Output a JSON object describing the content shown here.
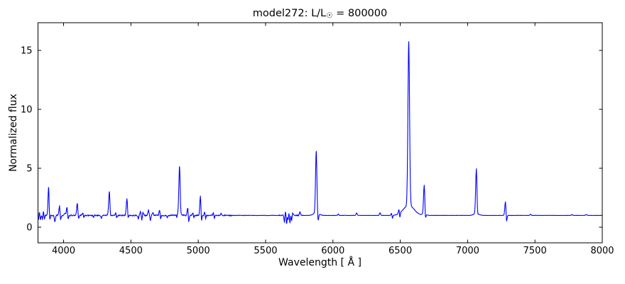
{
  "title": {
    "prefix": "model272: L/L",
    "sub": "☉",
    "suffix": " = 800000"
  },
  "chart_data": {
    "type": "line",
    "title": "model272: L/L☉ = 800000",
    "xlabel": "Wavelength [ Å ]",
    "ylabel": "Normalized flux",
    "xlim": [
      3810,
      8000
    ],
    "ylim": [
      -1.325,
      17.35
    ],
    "xticks": [
      4000,
      4500,
      5000,
      5500,
      6000,
      6500,
      7000,
      7500,
      8000
    ],
    "yticks": [
      0,
      5,
      10,
      15
    ],
    "grid": false,
    "legend": "none",
    "line_color": "#0000ff",
    "background": "#ffffff",
    "axis_color": "#000000",
    "continuum": 1.0,
    "noise": {
      "seed": 42,
      "regions": [
        {
          "from": 3810,
          "to": 5250,
          "amp": 0.055
        },
        {
          "from": 5250,
          "to": 5600,
          "amp": 0.018
        },
        {
          "from": 5600,
          "to": 5770,
          "amp": 0.05
        },
        {
          "from": 5770,
          "to": 8000,
          "amp": 0.012
        }
      ]
    },
    "emission_lines": [
      {
        "wl": 3820,
        "peak": 1.35,
        "sigma": 4
      },
      {
        "wl": 3850,
        "peak": 1.3,
        "sigma": 3.5
      },
      {
        "wl": 3889,
        "peak": 3.45,
        "sigma": 4.5
      },
      {
        "wl": 3970,
        "peak": 1.85,
        "sigma": 4.5
      },
      {
        "wl": 4009,
        "peak": 1.2,
        "sigma": 4
      },
      {
        "wl": 4026,
        "peak": 1.75,
        "sigma": 4.5
      },
      {
        "wl": 4102,
        "peak": 2.05,
        "sigma": 5
      },
      {
        "wl": 4144,
        "peak": 1.25,
        "sigma": 4
      },
      {
        "wl": 4340,
        "peak": 3.1,
        "sigma": 5
      },
      {
        "wl": 4388,
        "peak": 1.2,
        "sigma": 4
      },
      {
        "wl": 4471,
        "peak": 2.45,
        "sigma": 5
      },
      {
        "wl": 4570,
        "peak": 1.3,
        "sigma": 4
      },
      {
        "wl": 4590,
        "peak": 1.25,
        "sigma": 4
      },
      {
        "wl": 4630,
        "peak": 1.45,
        "sigma": 4
      },
      {
        "wl": 4662,
        "peak": 1.25,
        "sigma": 4
      },
      {
        "wl": 4713,
        "peak": 1.5,
        "sigma": 4
      },
      {
        "wl": 4861,
        "peak": 5.2,
        "sigma": 5,
        "wing_amp": 0.12,
        "wing_sigma": 18
      },
      {
        "wl": 4922,
        "peak": 1.7,
        "sigma": 4
      },
      {
        "wl": 4960,
        "peak": 1.25,
        "sigma": 4
      },
      {
        "wl": 5016,
        "peak": 2.7,
        "sigma": 4.5
      },
      {
        "wl": 5048,
        "peak": 1.3,
        "sigma": 4
      },
      {
        "wl": 5112,
        "peak": 1.2,
        "sigma": 4
      },
      {
        "wl": 5170,
        "peak": 1.15,
        "sigma": 4
      },
      {
        "wl": 5648,
        "peak": 1.3,
        "sigma": 4
      },
      {
        "wl": 5672,
        "peak": 1.35,
        "sigma": 4
      },
      {
        "wl": 5700,
        "peak": 1.25,
        "sigma": 4
      },
      {
        "wl": 5755,
        "peak": 1.3,
        "sigma": 4
      },
      {
        "wl": 5876,
        "peak": 6.45,
        "sigma": 5,
        "wing_amp": 0.22,
        "wing_sigma": 20
      },
      {
        "wl": 6040,
        "peak": 1.12,
        "sigma": 4
      },
      {
        "wl": 6176,
        "peak": 1.22,
        "sigma": 4
      },
      {
        "wl": 6350,
        "peak": 1.22,
        "sigma": 4
      },
      {
        "wl": 6435,
        "peak": 1.18,
        "sigma": 4
      },
      {
        "wl": 6490,
        "peak": 1.35,
        "sigma": 4
      },
      {
        "wl": 6563,
        "peak": 15.75,
        "sigma": 6,
        "wing_amp": 0.85,
        "wing_sigma": 40
      },
      {
        "wl": 6678,
        "peak": 3.6,
        "sigma": 5,
        "wing_amp": 0.1,
        "wing_sigma": 15
      },
      {
        "wl": 7065,
        "peak": 5.0,
        "sigma": 5,
        "wing_amp": 0.15,
        "wing_sigma": 20
      },
      {
        "wl": 7281,
        "peak": 2.2,
        "sigma": 4.5
      },
      {
        "wl": 7468,
        "peak": 1.1,
        "sigma": 4
      },
      {
        "wl": 7775,
        "peak": 1.08,
        "sigma": 4
      },
      {
        "wl": 7880,
        "peak": 1.08,
        "sigma": 4
      }
    ],
    "absorption_lines": [
      {
        "wl": 3814,
        "min": 0.6,
        "sigma": 3
      },
      {
        "wl": 3828,
        "min": 0.55,
        "sigma": 3
      },
      {
        "wl": 3843,
        "min": 0.65,
        "sigma": 3
      },
      {
        "wl": 3858,
        "min": 0.7,
        "sigma": 3
      },
      {
        "wl": 3896,
        "min": 0.15,
        "sigma": 3.5
      },
      {
        "wl": 3935,
        "min": 0.5,
        "sigma": 4
      },
      {
        "wl": 3977,
        "min": 0.45,
        "sigma": 3.5
      },
      {
        "wl": 4033,
        "min": 0.5,
        "sigma": 3.5
      },
      {
        "wl": 4110,
        "min": 0.5,
        "sigma": 3.5
      },
      {
        "wl": 4150,
        "min": 0.7,
        "sigma": 3
      },
      {
        "wl": 4222,
        "min": 0.8,
        "sigma": 3
      },
      {
        "wl": 4280,
        "min": 0.78,
        "sigma": 3
      },
      {
        "wl": 4347,
        "min": 0.55,
        "sigma": 3.5
      },
      {
        "wl": 4394,
        "min": 0.75,
        "sigma": 3
      },
      {
        "wl": 4478,
        "min": 0.4,
        "sigma": 3.5
      },
      {
        "wl": 4555,
        "min": 0.7,
        "sigma": 3
      },
      {
        "wl": 4581,
        "min": 0.6,
        "sigma": 3
      },
      {
        "wl": 4645,
        "min": 0.55,
        "sigma": 3
      },
      {
        "wl": 4720,
        "min": 0.6,
        "sigma": 3
      },
      {
        "wl": 4770,
        "min": 0.8,
        "sigma": 3
      },
      {
        "wl": 4841,
        "min": 0.8,
        "sigma": 3
      },
      {
        "wl": 4868,
        "min": 0.6,
        "sigma": 3.5
      },
      {
        "wl": 4929,
        "min": 0.35,
        "sigma": 3.5
      },
      {
        "wl": 4967,
        "min": 0.75,
        "sigma": 3
      },
      {
        "wl": 5023,
        "min": 0.3,
        "sigma": 3.5
      },
      {
        "wl": 5055,
        "min": 0.65,
        "sigma": 3
      },
      {
        "wl": 5120,
        "min": 0.72,
        "sigma": 3
      },
      {
        "wl": 5640,
        "min": 0.4,
        "sigma": 3
      },
      {
        "wl": 5656,
        "min": 0.25,
        "sigma": 3
      },
      {
        "wl": 5668,
        "min": 0.45,
        "sigma": 3
      },
      {
        "wl": 5681,
        "min": 0.35,
        "sigma": 3
      },
      {
        "wl": 5694,
        "min": 0.5,
        "sigma": 3
      },
      {
        "wl": 5890,
        "min": 0.35,
        "sigma": 4
      },
      {
        "wl": 6442,
        "min": 0.72,
        "sigma": 3
      },
      {
        "wl": 6497,
        "min": 0.58,
        "sigma": 3
      },
      {
        "wl": 6686,
        "min": 0.28,
        "sigma": 3.5
      },
      {
        "wl": 7073,
        "min": 0.55,
        "sigma": 3.5
      },
      {
        "wl": 7289,
        "min": 0.35,
        "sigma": 3.5
      }
    ]
  }
}
